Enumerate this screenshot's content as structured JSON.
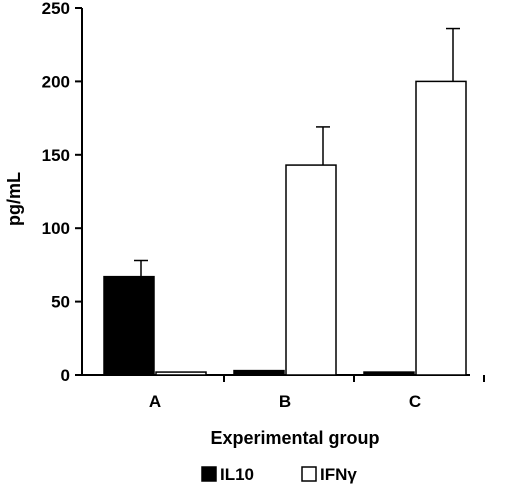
{
  "chart_data": {
    "type": "bar",
    "categories": [
      "A",
      "B",
      "C"
    ],
    "series": [
      {
        "name": "IL10",
        "values": [
          67,
          3,
          2
        ],
        "errors": [
          11,
          0,
          0
        ],
        "fill": "#000000"
      },
      {
        "name": "IFNγ",
        "values": [
          2,
          143,
          200
        ],
        "errors": [
          0,
          26,
          36
        ],
        "fill": "#ffffff"
      }
    ],
    "title": "",
    "xlabel": "Experimental group",
    "ylabel": "pg/mL",
    "ylim": [
      0,
      250
    ],
    "yticks": [
      0,
      50,
      100,
      150,
      200,
      250
    ],
    "grid": false,
    "legend_position": "bottom"
  }
}
